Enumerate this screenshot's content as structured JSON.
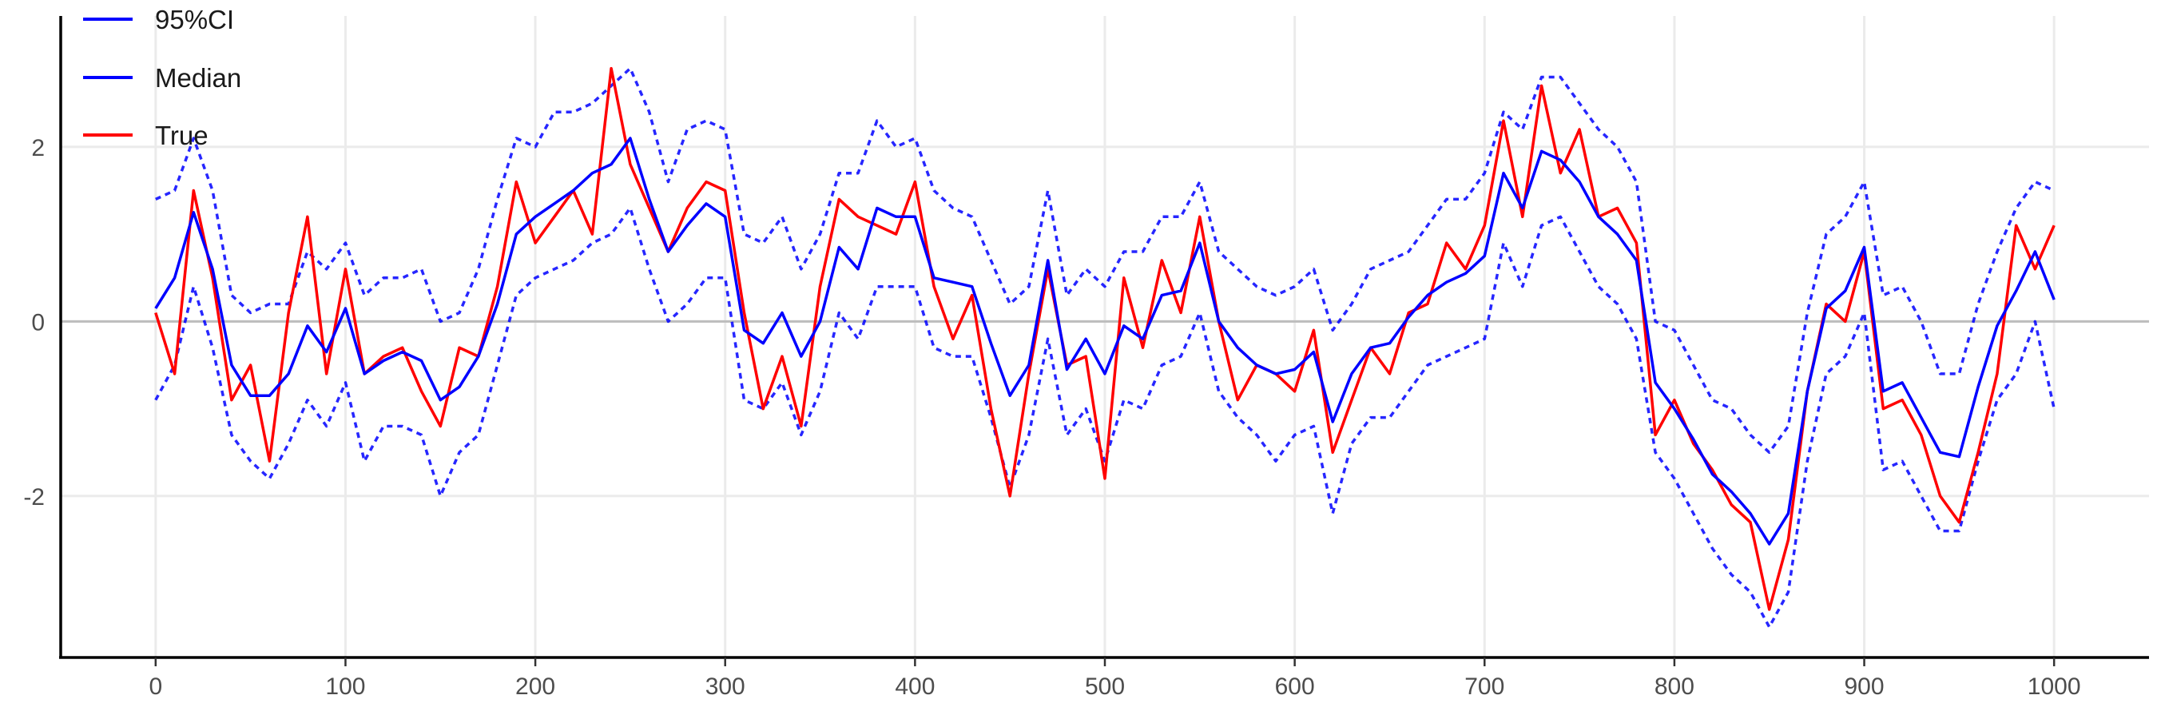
{
  "chart_data": {
    "type": "line",
    "title": "",
    "xlabel": "",
    "ylabel": "",
    "xlim": [
      -50,
      1050
    ],
    "ylim": [
      -3.85,
      3.5
    ],
    "x_ticks": [
      0,
      100,
      200,
      300,
      400,
      500,
      600,
      700,
      800,
      900,
      1000
    ],
    "y_ticks": [
      -2,
      0,
      2
    ],
    "x_tick_labels": [
      "0",
      "100",
      "200",
      "300",
      "400",
      "500",
      "600",
      "700",
      "800",
      "900",
      "1000"
    ],
    "y_tick_labels": [
      "-2",
      "0",
      "2"
    ],
    "grid": true,
    "reference_line_y": 0,
    "legend": {
      "position": "top-left",
      "entries": [
        {
          "label": "95%CI",
          "color": "#0000ff",
          "style": "solid"
        },
        {
          "label": "Median",
          "color": "#0000ff",
          "style": "solid"
        },
        {
          "label": "True",
          "color": "#ff0000",
          "style": "solid"
        }
      ]
    },
    "series": [
      {
        "name": "True",
        "color": "#ff0000",
        "style": "solid",
        "x": [
          0,
          10,
          20,
          30,
          40,
          50,
          60,
          70,
          80,
          90,
          100,
          110,
          120,
          130,
          140,
          150,
          160,
          170,
          180,
          190,
          200,
          210,
          220,
          230,
          240,
          250,
          260,
          270,
          280,
          290,
          300,
          310,
          320,
          330,
          340,
          350,
          360,
          370,
          380,
          390,
          400,
          410,
          420,
          430,
          440,
          450,
          460,
          470,
          480,
          490,
          500,
          510,
          520,
          530,
          540,
          550,
          560,
          570,
          580,
          590,
          600,
          610,
          620,
          630,
          640,
          650,
          660,
          670,
          680,
          690,
          700,
          710,
          720,
          730,
          740,
          750,
          760,
          770,
          780,
          790,
          800,
          810,
          820,
          830,
          840,
          850,
          860,
          870,
          880,
          890,
          900,
          910,
          920,
          930,
          940,
          950,
          960,
          970,
          980,
          990,
          1000
        ],
        "y": [
          0.1,
          -0.6,
          1.5,
          0.5,
          -0.9,
          -0.5,
          -1.6,
          0.1,
          1.2,
          -0.6,
          0.6,
          -0.6,
          -0.4,
          -0.3,
          -0.8,
          -1.2,
          -0.3,
          -0.4,
          0.4,
          1.6,
          0.9,
          1.2,
          1.5,
          1.0,
          2.9,
          1.8,
          1.3,
          0.8,
          1.3,
          1.6,
          1.5,
          0.1,
          -1.0,
          -0.4,
          -1.2,
          0.4,
          1.4,
          1.2,
          1.1,
          1.0,
          1.6,
          0.4,
          -0.2,
          0.3,
          -1.0,
          -2.0,
          -0.6,
          0.6,
          -0.5,
          -0.4,
          -1.8,
          0.5,
          -0.3,
          0.7,
          0.1,
          1.2,
          0.0,
          -0.9,
          -0.5,
          -0.6,
          -0.8,
          -0.1,
          -1.5,
          -0.9,
          -0.3,
          -0.6,
          0.1,
          0.2,
          0.9,
          0.6,
          1.1,
          2.3,
          1.2,
          2.7,
          1.7,
          2.2,
          1.2,
          1.3,
          0.9,
          -1.3,
          -0.9,
          -1.4,
          -1.7,
          -2.1,
          -2.3,
          -3.3,
          -2.5,
          -0.8,
          0.2,
          0.0,
          0.8,
          -1.0,
          -0.9,
          -1.3,
          -2.0,
          -2.3,
          -1.5,
          -0.6,
          1.1,
          0.6,
          1.1
        ]
      },
      {
        "name": "Median",
        "color": "#0000ff",
        "style": "solid",
        "x": [
          0,
          10,
          20,
          30,
          40,
          50,
          60,
          70,
          80,
          90,
          100,
          110,
          120,
          130,
          140,
          150,
          160,
          170,
          180,
          190,
          200,
          210,
          220,
          230,
          240,
          250,
          260,
          270,
          280,
          290,
          300,
          310,
          320,
          330,
          340,
          350,
          360,
          370,
          380,
          390,
          400,
          410,
          420,
          430,
          440,
          450,
          460,
          470,
          480,
          490,
          500,
          510,
          520,
          530,
          540,
          550,
          560,
          570,
          580,
          590,
          600,
          610,
          620,
          630,
          640,
          650,
          660,
          670,
          680,
          690,
          700,
          710,
          720,
          730,
          740,
          750,
          760,
          770,
          780,
          790,
          800,
          810,
          820,
          830,
          840,
          850,
          860,
          870,
          880,
          890,
          900,
          910,
          920,
          930,
          940,
          950,
          960,
          970,
          980,
          990,
          1000
        ],
        "y": [
          0.15,
          0.5,
          1.25,
          0.6,
          -0.5,
          -0.85,
          -0.85,
          -0.6,
          -0.05,
          -0.35,
          0.15,
          -0.6,
          -0.45,
          -0.35,
          -0.45,
          -0.9,
          -0.75,
          -0.4,
          0.2,
          1.0,
          1.2,
          1.35,
          1.5,
          1.7,
          1.8,
          2.1,
          1.4,
          0.8,
          1.1,
          1.35,
          1.2,
          -0.1,
          -0.25,
          0.1,
          -0.4,
          0.0,
          0.85,
          0.6,
          1.3,
          1.2,
          1.2,
          0.5,
          0.45,
          0.4,
          -0.25,
          -0.85,
          -0.5,
          0.7,
          -0.55,
          -0.2,
          -0.6,
          -0.05,
          -0.2,
          0.3,
          0.35,
          0.9,
          0.0,
          -0.3,
          -0.5,
          -0.6,
          -0.55,
          -0.35,
          -1.15,
          -0.6,
          -0.3,
          -0.25,
          0.05,
          0.3,
          0.45,
          0.55,
          0.75,
          1.7,
          1.3,
          1.95,
          1.85,
          1.6,
          1.2,
          1.0,
          0.7,
          -0.7,
          -1.0,
          -1.35,
          -1.75,
          -1.95,
          -2.2,
          -2.55,
          -2.2,
          -0.8,
          0.15,
          0.35,
          0.85,
          -0.8,
          -0.7,
          -1.1,
          -1.5,
          -1.55,
          -0.75,
          -0.05,
          0.35,
          0.8,
          0.25
        ]
      },
      {
        "name": "95%CI upper",
        "color": "#0000ff",
        "style": "dotted",
        "x": [
          0,
          10,
          20,
          30,
          40,
          50,
          60,
          70,
          80,
          90,
          100,
          110,
          120,
          130,
          140,
          150,
          160,
          170,
          180,
          190,
          200,
          210,
          220,
          230,
          240,
          250,
          260,
          270,
          280,
          290,
          300,
          310,
          320,
          330,
          340,
          350,
          360,
          370,
          380,
          390,
          400,
          410,
          420,
          430,
          440,
          450,
          460,
          470,
          480,
          490,
          500,
          510,
          520,
          530,
          540,
          550,
          560,
          570,
          580,
          590,
          600,
          610,
          620,
          630,
          640,
          650,
          660,
          670,
          680,
          690,
          700,
          710,
          720,
          730,
          740,
          750,
          760,
          770,
          780,
          790,
          800,
          810,
          820,
          830,
          840,
          850,
          860,
          870,
          880,
          890,
          900,
          910,
          920,
          930,
          940,
          950,
          960,
          970,
          980,
          990,
          1000
        ],
        "y": [
          1.4,
          1.5,
          2.1,
          1.5,
          0.3,
          0.1,
          0.2,
          0.2,
          0.8,
          0.6,
          0.9,
          0.3,
          0.5,
          0.5,
          0.6,
          0.0,
          0.1,
          0.6,
          1.4,
          2.1,
          2.0,
          2.4,
          2.4,
          2.5,
          2.7,
          2.9,
          2.4,
          1.6,
          2.2,
          2.3,
          2.2,
          1.0,
          0.9,
          1.2,
          0.6,
          1.0,
          1.7,
          1.7,
          2.3,
          2.0,
          2.1,
          1.5,
          1.3,
          1.2,
          0.7,
          0.2,
          0.4,
          1.5,
          0.3,
          0.6,
          0.4,
          0.8,
          0.8,
          1.2,
          1.2,
          1.6,
          0.8,
          0.6,
          0.4,
          0.3,
          0.4,
          0.6,
          -0.1,
          0.2,
          0.6,
          0.7,
          0.8,
          1.1,
          1.4,
          1.4,
          1.7,
          2.4,
          2.2,
          2.8,
          2.8,
          2.5,
          2.2,
          2.0,
          1.6,
          0.0,
          -0.1,
          -0.5,
          -0.9,
          -1.0,
          -1.3,
          -1.5,
          -1.2,
          0.1,
          1.0,
          1.2,
          1.6,
          0.3,
          0.4,
          0.0,
          -0.6,
          -0.6,
          0.2,
          0.8,
          1.3,
          1.6,
          1.5
        ]
      },
      {
        "name": "95%CI lower",
        "color": "#0000ff",
        "style": "dotted",
        "x": [
          0,
          10,
          20,
          30,
          40,
          50,
          60,
          70,
          80,
          90,
          100,
          110,
          120,
          130,
          140,
          150,
          160,
          170,
          180,
          190,
          200,
          210,
          220,
          230,
          240,
          250,
          260,
          270,
          280,
          290,
          300,
          310,
          320,
          330,
          340,
          350,
          360,
          370,
          380,
          390,
          400,
          410,
          420,
          430,
          440,
          450,
          460,
          470,
          480,
          490,
          500,
          510,
          520,
          530,
          540,
          550,
          560,
          570,
          580,
          590,
          600,
          610,
          620,
          630,
          640,
          650,
          660,
          670,
          680,
          690,
          700,
          710,
          720,
          730,
          740,
          750,
          760,
          770,
          780,
          790,
          800,
          810,
          820,
          830,
          840,
          850,
          860,
          870,
          880,
          890,
          900,
          910,
          920,
          930,
          940,
          950,
          960,
          970,
          980,
          990,
          1000
        ],
        "y": [
          -0.9,
          -0.5,
          0.4,
          -0.3,
          -1.3,
          -1.6,
          -1.8,
          -1.4,
          -0.9,
          -1.2,
          -0.7,
          -1.6,
          -1.2,
          -1.2,
          -1.3,
          -2.0,
          -1.5,
          -1.3,
          -0.5,
          0.3,
          0.5,
          0.6,
          0.7,
          0.9,
          1.0,
          1.3,
          0.6,
          0.0,
          0.2,
          0.5,
          0.5,
          -0.9,
          -1.0,
          -0.7,
          -1.3,
          -0.8,
          0.1,
          -0.2,
          0.4,
          0.4,
          0.4,
          -0.3,
          -0.4,
          -0.4,
          -1.1,
          -1.9,
          -1.3,
          -0.2,
          -1.3,
          -1.0,
          -1.6,
          -0.9,
          -1.0,
          -0.5,
          -0.4,
          0.1,
          -0.8,
          -1.1,
          -1.3,
          -1.6,
          -1.3,
          -1.2,
          -2.2,
          -1.4,
          -1.1,
          -1.1,
          -0.8,
          -0.5,
          -0.4,
          -0.3,
          -0.2,
          0.9,
          0.4,
          1.1,
          1.2,
          0.8,
          0.4,
          0.2,
          -0.2,
          -1.5,
          -1.8,
          -2.2,
          -2.6,
          -2.9,
          -3.1,
          -3.5,
          -3.1,
          -1.6,
          -0.6,
          -0.4,
          0.1,
          -1.7,
          -1.6,
          -2.0,
          -2.4,
          -2.4,
          -1.6,
          -0.9,
          -0.6,
          0.0,
          -1.0
        ]
      }
    ]
  }
}
